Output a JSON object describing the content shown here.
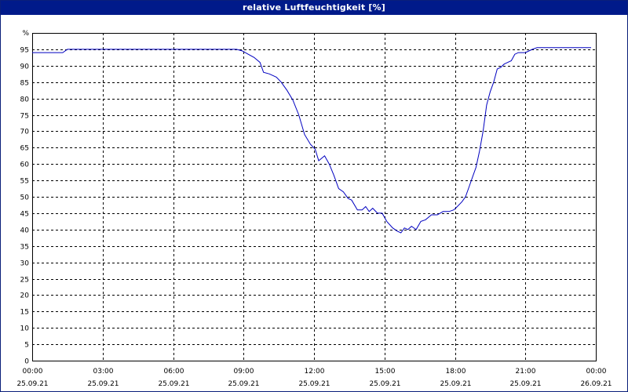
{
  "chart_data": {
    "type": "line",
    "title": "relative Luftfeuchtigkeit [%]",
    "ylabel": "%",
    "xlabel": "",
    "ylim": [
      0,
      100
    ],
    "xlim": [
      0,
      24
    ],
    "y_ticks": [
      0,
      5,
      10,
      15,
      20,
      25,
      30,
      35,
      40,
      45,
      50,
      55,
      60,
      65,
      70,
      75,
      80,
      85,
      90,
      95
    ],
    "x_ticks": [
      {
        "x": 0,
        "time": "00:00",
        "date": "25.09.21"
      },
      {
        "x": 3,
        "time": "03:00",
        "date": "25.09.21"
      },
      {
        "x": 6,
        "time": "06:00",
        "date": "25.09.21"
      },
      {
        "x": 9,
        "time": "09:00",
        "date": "25.09.21"
      },
      {
        "x": 12,
        "time": "12:00",
        "date": "25.09.21"
      },
      {
        "x": 15,
        "time": "15:00",
        "date": "25.09.21"
      },
      {
        "x": 18,
        "time": "18:00",
        "date": "25.09.21"
      },
      {
        "x": 21,
        "time": "21:00",
        "date": "25.09.21"
      },
      {
        "x": 24,
        "time": "00:00",
        "date": "26.09.21"
      }
    ],
    "grid": true,
    "line_color": "#0000c0",
    "series": [
      {
        "x": [
          0,
          1.3,
          1.5,
          8.7,
          8.95,
          9.2,
          9.45,
          9.7,
          9.85,
          10.1,
          10.4,
          10.6,
          10.85,
          11.1,
          11.35,
          11.6,
          11.85,
          12.05,
          12.2,
          12.45,
          12.65,
          12.85,
          13.05,
          13.25,
          13.45,
          13.6,
          13.85,
          14.05,
          14.2,
          14.35,
          14.5,
          14.7,
          14.9,
          15.1,
          15.35,
          15.55,
          15.7,
          15.85,
          16.0,
          16.15,
          16.35,
          16.55,
          16.75,
          17.0,
          17.25,
          17.5,
          17.75,
          17.95,
          18.1,
          18.3,
          18.45,
          18.6,
          18.75,
          18.9,
          19.05,
          19.2,
          19.35,
          19.5,
          19.65,
          19.8,
          19.95,
          20.1,
          20.25,
          20.4,
          20.55,
          20.7,
          20.85,
          21.0,
          21.15,
          21.3,
          21.5,
          21.7,
          21.9,
          22.1,
          22.4,
          22.7,
          23.0,
          23.3,
          23.6,
          23.8
        ],
        "y": [
          94,
          94,
          95,
          95,
          94.5,
          93.5,
          92.5,
          91,
          88,
          87.5,
          86.5,
          85,
          82.5,
          79.5,
          75,
          69,
          66,
          64.5,
          61,
          62.5,
          60,
          56.5,
          52.5,
          51.5,
          49.5,
          49,
          46,
          46,
          47,
          45.5,
          46.5,
          45,
          45,
          42.5,
          40.5,
          39.5,
          39,
          40.5,
          40,
          41,
          40,
          42.5,
          43,
          44.5,
          44.5,
          45.5,
          45.5,
          46,
          47,
          48.5,
          50,
          53,
          56,
          59,
          64,
          70,
          78,
          82,
          85,
          89,
          89.5,
          90.5,
          91,
          91.5,
          93.5,
          94,
          94,
          94,
          94.5,
          95,
          95.5,
          95.5,
          95.5,
          95.5,
          95.5,
          95.5,
          95.5,
          95.5,
          95.5,
          95.5
        ]
      }
    ]
  }
}
